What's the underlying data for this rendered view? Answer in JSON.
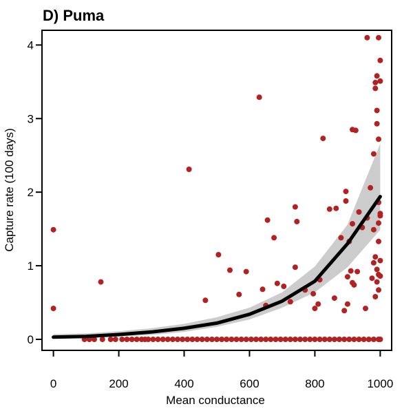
{
  "chart_data": {
    "type": "scatter",
    "title": "D) Puma",
    "xlabel": "Mean conductance",
    "ylabel": "Capture rate (100 days)",
    "xlim": [
      -35,
      1035
    ],
    "ylim": [
      -0.15,
      4.2
    ],
    "xticks": [
      0,
      200,
      400,
      600,
      800,
      1000
    ],
    "yticks": [
      0,
      1,
      2,
      3,
      4
    ],
    "grid": false,
    "legend": "none",
    "colors": {
      "points": "#b22222",
      "fit_line": "#000000",
      "band": "#cccccc"
    },
    "series": [
      {
        "kind": "points",
        "x": [
          0,
          0,
          145,
          415,
          465,
          505,
          540,
          568,
          590,
          630,
          640,
          650,
          655,
          675,
          685,
          705,
          725,
          740,
          740,
          745,
          770,
          795,
          800,
          810,
          815,
          825,
          845,
          860,
          865,
          880,
          890,
          895,
          895,
          900,
          900,
          905,
          910,
          915,
          915,
          915,
          920,
          925,
          930,
          935,
          945,
          955,
          960,
          960,
          970,
          975,
          980,
          980,
          980,
          985,
          985,
          985,
          985,
          990,
          990,
          990,
          990,
          990,
          995,
          995,
          995,
          995,
          995,
          995,
          995,
          1000,
          1000,
          1000,
          1000,
          1000,
          1000
        ],
        "y": [
          1.49,
          0.42,
          0.78,
          2.31,
          0.53,
          1.15,
          0.94,
          0.61,
          0.92,
          3.29,
          0.68,
          0.46,
          1.62,
          1.38,
          0.76,
          0.72,
          0.51,
          0.98,
          1.8,
          1.6,
          0.67,
          0.62,
          0.42,
          0.48,
          0.81,
          2.73,
          1.77,
          0.56,
          1.78,
          1.38,
          0.39,
          1.88,
          2.01,
          0.85,
          0.48,
          1.33,
          0.93,
          0.77,
          1.57,
          2.85,
          0.74,
          2.84,
          0.92,
          1.73,
          1.52,
          0.42,
          1.65,
          4.1,
          2.06,
          0.83,
          2.52,
          1.49,
          1.04,
          0.58,
          1.12,
          3.41,
          3.49,
          3.58,
          3.11,
          2.93,
          0.95,
          0.78,
          0.67,
          0.88,
          1.58,
          1.33,
          1.86,
          2.72,
          4.1,
          1.68,
          1.71,
          1.07,
          3.79,
          3.51,
          0.86
        ]
      },
      {
        "kind": "zero-points",
        "x": [
          95,
          110,
          125,
          150,
          175,
          190,
          210,
          225,
          240,
          255,
          270,
          280,
          290,
          305,
          320,
          335,
          350,
          365,
          380,
          395,
          410,
          425,
          440,
          455,
          470,
          485,
          500,
          515,
          530,
          545,
          560,
          575,
          590,
          605,
          620,
          635,
          650,
          665,
          680,
          695,
          710,
          725,
          740,
          755,
          770,
          785,
          800,
          815,
          830,
          845,
          860,
          875,
          890,
          905,
          920,
          935,
          950,
          965,
          980,
          995,
          1000
        ],
        "y": [
          0,
          0,
          0,
          0,
          0,
          0,
          0,
          0,
          0,
          0,
          0,
          0,
          0,
          0,
          0,
          0,
          0,
          0,
          0,
          0,
          0,
          0,
          0,
          0,
          0,
          0,
          0,
          0,
          0,
          0,
          0,
          0,
          0,
          0,
          0,
          0,
          0,
          0,
          0,
          0,
          0,
          0,
          0,
          0,
          0,
          0,
          0,
          0,
          0,
          0,
          0,
          0,
          0,
          0,
          0,
          0,
          0,
          0,
          0,
          0,
          0
        ]
      },
      {
        "kind": "fit",
        "x": [
          0,
          100,
          200,
          300,
          400,
          500,
          600,
          700,
          800,
          900,
          1000
        ],
        "y": [
          0.03,
          0.04,
          0.065,
          0.1,
          0.15,
          0.22,
          0.34,
          0.52,
          0.79,
          1.3,
          1.94
        ],
        "lower": [
          0.01,
          0.02,
          0.04,
          0.06,
          0.1,
          0.17,
          0.27,
          0.43,
          0.64,
          0.98,
          1.49
        ],
        "upper": [
          0.07,
          0.08,
          0.11,
          0.15,
          0.21,
          0.3,
          0.43,
          0.64,
          0.99,
          1.56,
          2.66
        ]
      }
    ]
  }
}
